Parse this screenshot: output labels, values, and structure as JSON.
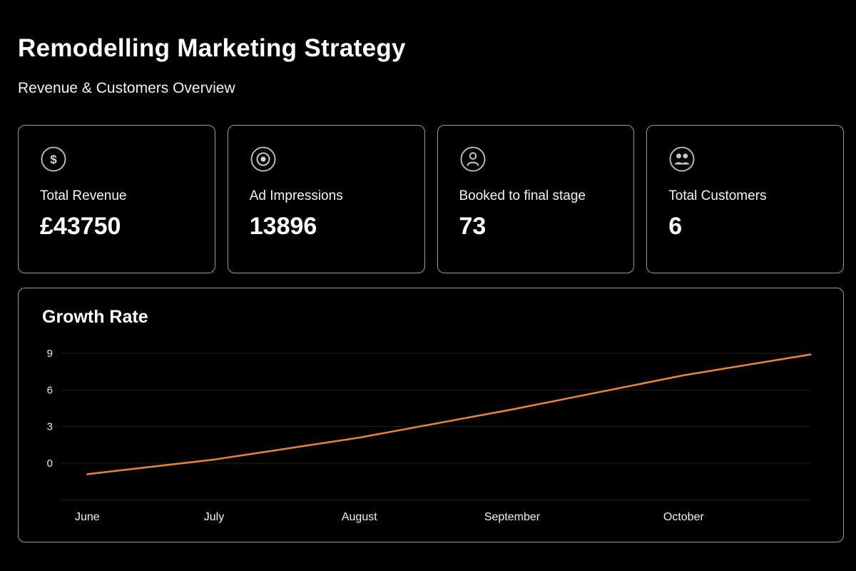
{
  "page": {
    "background": "#000000",
    "accent": "#e0833c"
  },
  "header": {
    "title": "Remodelling Marketing Strategy",
    "subtitle": "Revenue & Customers Overview"
  },
  "cards": [
    {
      "icon": "dollar-icon",
      "glyph": "$",
      "label": "Total Revenue",
      "value": "£43750"
    },
    {
      "icon": "target-icon",
      "label": "Ad Impressions",
      "value": "13896"
    },
    {
      "icon": "user-icon",
      "label": "Booked to final stage",
      "value": "73"
    },
    {
      "icon": "users-icon",
      "label": "Total Customers",
      "value": "6"
    }
  ],
  "chart_data": {
    "type": "line",
    "title": "Growth Rate",
    "x": [
      "June",
      "July",
      "August",
      "September",
      "October"
    ],
    "x_label_pct": [
      3,
      20,
      39.5,
      60,
      83
    ],
    "yticks": [
      0,
      3,
      6,
      9
    ],
    "ylim": [
      -3,
      9.5
    ],
    "grid": true,
    "legend": "none",
    "series": [
      {
        "name": "Growth Rate",
        "color": "#e0833c",
        "points": [
          {
            "x_pct": 3,
            "y": -0.9
          },
          {
            "x_pct": 20,
            "y": 0.3
          },
          {
            "x_pct": 39.5,
            "y": 2.1
          },
          {
            "x_pct": 60,
            "y": 4.4
          },
          {
            "x_pct": 83,
            "y": 7.2
          },
          {
            "x_pct": 100,
            "y": 8.9
          }
        ]
      }
    ]
  }
}
